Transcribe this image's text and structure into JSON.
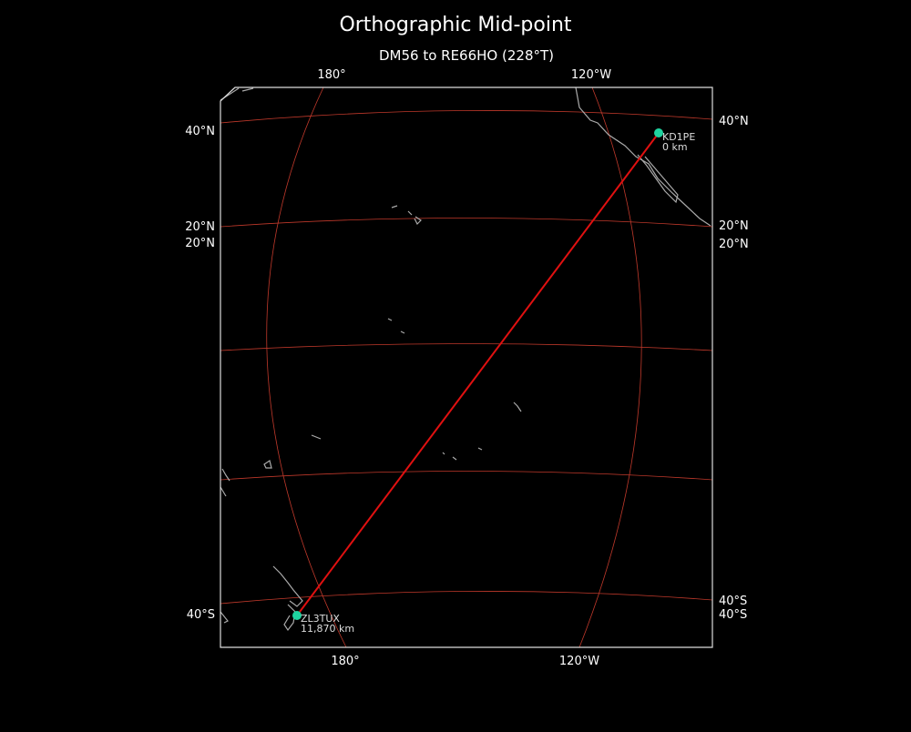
{
  "header": {
    "title": "Orthographic Mid-point",
    "subtitle": "DM56 to RE66HO (228°T)"
  },
  "graticule_labels": {
    "top": [
      "180°",
      "120°W"
    ],
    "bottom": [
      "180°",
      "120°W"
    ],
    "left": [
      "40°N",
      "20°N",
      "20°N",
      "40°S"
    ],
    "right": [
      "40°N",
      "20°N",
      "20°N",
      "40°S",
      "40°S"
    ]
  },
  "stations": [
    {
      "label": "KD1PE",
      "distance": "0 km"
    },
    {
      "label": "ZL3TUX",
      "distance": "11,870 km"
    }
  ]
}
